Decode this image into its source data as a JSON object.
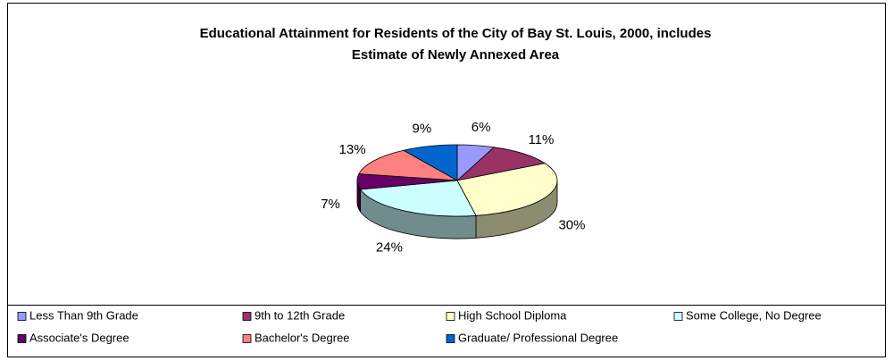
{
  "chart_data": {
    "type": "pie",
    "title": "Educational Attainment for Residents of the City of Bay St. Louis, 2000, includes",
    "subtitle": "Estimate of Newly Annexed Area",
    "categories": [
      "Less Than 9th Grade",
      "9th to 12th Grade",
      "High School Diploma",
      "Some College, No Degree",
      "Associate's Degree",
      "Bachelor's Degree",
      "Graduate/ Professional Degree"
    ],
    "values": [
      6,
      11,
      30,
      24,
      7,
      13,
      9
    ],
    "value_labels": [
      "6%",
      "11%",
      "30%",
      "24%",
      "7%",
      "13%",
      "9%"
    ],
    "colors": [
      "#9999ff",
      "#993366",
      "#ffffcc",
      "#ccffff",
      "#660066",
      "#ff8080",
      "#0066cc"
    ],
    "legend": "bottom"
  }
}
